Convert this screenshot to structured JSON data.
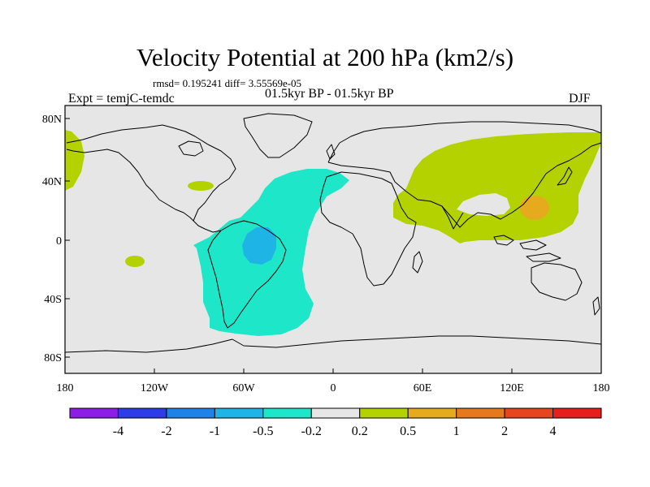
{
  "map": {
    "title": "Velocity Potential at 200 hPa (km2/s)",
    "stats": "rmsd= 0.195241 diff= 3.55569e-05",
    "period": "01.5kyr BP - 01.5kyr BP",
    "experiment": "Expt = temjC-temdc",
    "season": "DJF",
    "lat_ticks": [
      "80N",
      "40N",
      "0",
      "40S",
      "80S"
    ],
    "lon_ticks": [
      "180",
      "120W",
      "60W",
      "0",
      "60E",
      "120E",
      "180"
    ],
    "background_color": "#e6e6e6",
    "anomalies": [
      {
        "region": "Atlantic / South America negative anomaly",
        "level": "-0.5 to -0.2",
        "color": "#1ee6c8"
      },
      {
        "region": "Amazon core",
        "level": "-1 to -0.5",
        "color": "#1eb4e6"
      },
      {
        "region": "Eurasia / Indian Ocean positive anomaly",
        "level": "0.2 to 0.5",
        "color": "#b4d200"
      },
      {
        "region": "Western Pacific core",
        "level": "0.5 to 1",
        "color": "#e6aa1e"
      }
    ]
  },
  "colorbar": {
    "labels": [
      "-4",
      "-2",
      "-1",
      "-0.5",
      "-0.2",
      "0.2",
      "0.5",
      "1",
      "2",
      "4"
    ],
    "colors": [
      "#8c1ee6",
      "#2d3ce6",
      "#1e82e6",
      "#1eb4e6",
      "#1ee6c8",
      "#e6e6e6",
      "#b4d200",
      "#e6aa1e",
      "#e6781e",
      "#e6461e",
      "#e61e1e"
    ]
  }
}
